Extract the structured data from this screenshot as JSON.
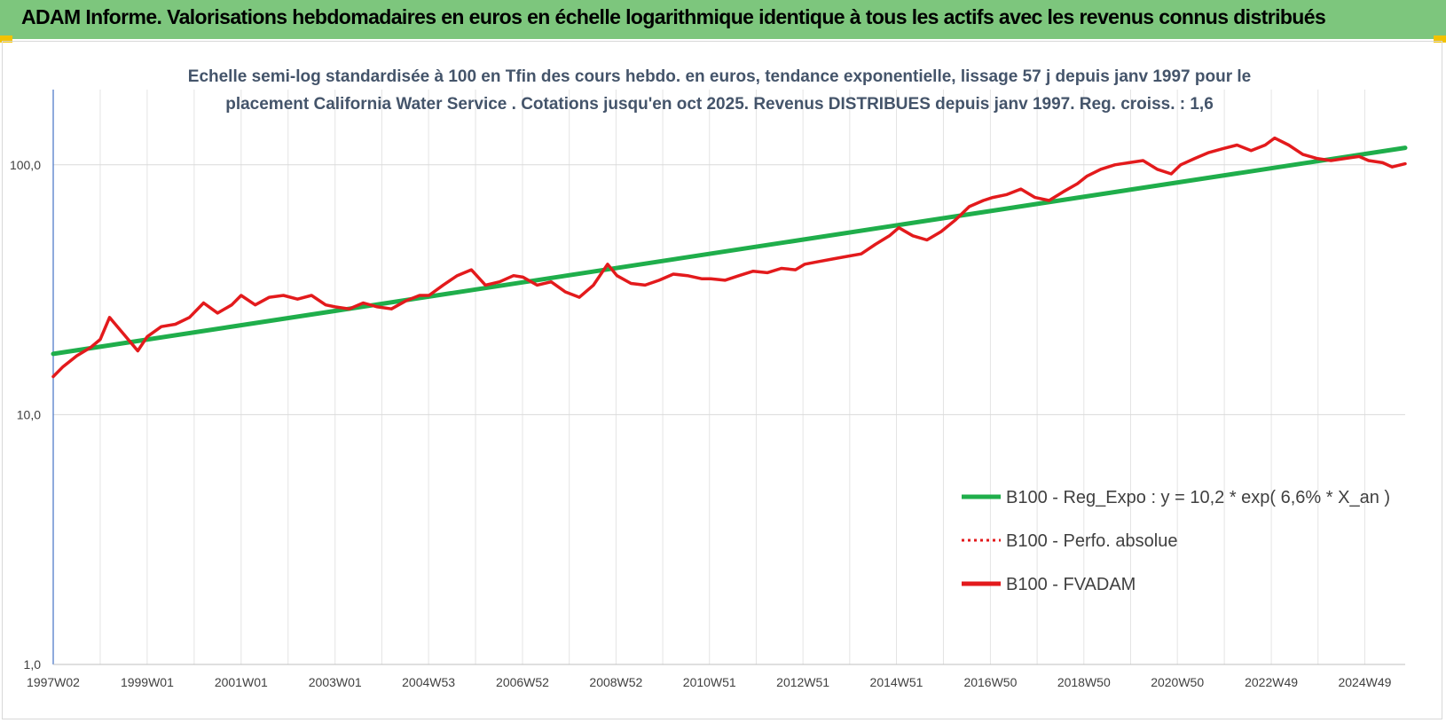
{
  "banner": {
    "title": "ADAM Informe. Valorisations hebdomadaires en euros en échelle logarithmique identique à tous les actifs avec les revenus connus distribués"
  },
  "chart_data": {
    "type": "line",
    "title_lines": [
      "Echelle semi-log standardisée à 100 en Tfin des cours hebdo. en euros, tendance exponentielle, lissage 57 j depuis janv 1997 pour le",
      "placement California Water Service . Cotations jusqu'en oct 2025. Revenus DISTRIBUES depuis janv 1997. Reg. croiss. : 1,6"
    ],
    "y_scale": "log",
    "ylim": [
      1,
      200
    ],
    "y_ticks": [
      {
        "value": 1,
        "label": "1,0"
      },
      {
        "value": 10,
        "label": "10,0"
      },
      {
        "value": 100,
        "label": "100,0"
      }
    ],
    "xlim": [
      1997.0,
      2025.78
    ],
    "x_ticks": [
      {
        "value": 1997.0,
        "label": "1997W02"
      },
      {
        "value": 1999.0,
        "label": "1999W01"
      },
      {
        "value": 2001.0,
        "label": "2001W01"
      },
      {
        "value": 2003.0,
        "label": "2003W01"
      },
      {
        "value": 2004.99,
        "label": "2004W53"
      },
      {
        "value": 2006.99,
        "label": "2006W52"
      },
      {
        "value": 2008.98,
        "label": "2008W52"
      },
      {
        "value": 2010.97,
        "label": "2010W51"
      },
      {
        "value": 2012.96,
        "label": "2012W51"
      },
      {
        "value": 2014.95,
        "label": "2014W51"
      },
      {
        "value": 2016.95,
        "label": "2016W50"
      },
      {
        "value": 2018.94,
        "label": "2018W50"
      },
      {
        "value": 2020.93,
        "label": "2020W50"
      },
      {
        "value": 2022.93,
        "label": "2022W49"
      },
      {
        "value": 2024.92,
        "label": "2024W49"
      }
    ],
    "grid": {
      "vertical": true,
      "horizontal": true
    },
    "legend_position": "bottom-right",
    "series": [
      {
        "name": "B100 - Reg_Expo : y = 10,2 * exp( 6,6% *  X_an )",
        "color": "#1fae4b",
        "style": "solid",
        "x": [
          1997.0,
          2025.78
        ],
        "y": [
          17.5,
          117
        ]
      },
      {
        "name": "B100 - Perfo. absolue",
        "color": "#e31a1c",
        "style": "dotted",
        "x": [],
        "y": []
      },
      {
        "name": "B100 - FVADAM",
        "color": "#e31a1c",
        "style": "solid",
        "x": [
          1997.0,
          1997.2,
          1997.5,
          1997.8,
          1998.0,
          1998.2,
          1998.5,
          1998.8,
          1999.0,
          1999.3,
          1999.6,
          1999.9,
          2000.2,
          2000.5,
          2000.8,
          2001.0,
          2001.3,
          2001.6,
          2001.9,
          2002.2,
          2002.5,
          2002.8,
          2003.0,
          2003.3,
          2003.6,
          2003.9,
          2004.2,
          2004.5,
          2004.8,
          2005.0,
          2005.3,
          2005.6,
          2005.9,
          2006.2,
          2006.5,
          2006.8,
          2007.0,
          2007.3,
          2007.6,
          2007.9,
          2008.2,
          2008.5,
          2008.8,
          2009.0,
          2009.3,
          2009.6,
          2009.9,
          2010.2,
          2010.5,
          2010.8,
          2011.0,
          2011.3,
          2011.6,
          2011.9,
          2012.2,
          2012.5,
          2012.8,
          2013.0,
          2013.3,
          2013.6,
          2013.9,
          2014.2,
          2014.5,
          2014.8,
          2015.0,
          2015.3,
          2015.6,
          2015.9,
          2016.2,
          2016.5,
          2016.8,
          2017.0,
          2017.3,
          2017.6,
          2017.9,
          2018.2,
          2018.5,
          2018.8,
          2019.0,
          2019.3,
          2019.6,
          2019.9,
          2020.2,
          2020.5,
          2020.8,
          2021.0,
          2021.3,
          2021.6,
          2021.9,
          2022.2,
          2022.5,
          2022.8,
          2023.0,
          2023.3,
          2023.6,
          2023.9,
          2024.2,
          2024.5,
          2024.8,
          2025.0,
          2025.3,
          2025.5,
          2025.78
        ],
        "y": [
          14.2,
          15.5,
          17.2,
          18.6,
          20.0,
          24.5,
          21.0,
          18.0,
          20.5,
          22.5,
          23.0,
          24.5,
          28.0,
          25.5,
          27.5,
          30.0,
          27.5,
          29.5,
          30.0,
          29.0,
          30.0,
          27.5,
          27.0,
          26.5,
          28.0,
          27.0,
          26.5,
          28.5,
          30.0,
          30.0,
          33.0,
          36.0,
          38.0,
          33.0,
          34.0,
          36.0,
          35.5,
          33.0,
          34.0,
          31.0,
          29.5,
          33.0,
          40.0,
          36.0,
          33.5,
          33.0,
          34.5,
          36.5,
          36.0,
          35.0,
          35.0,
          34.5,
          36.0,
          37.5,
          37.0,
          38.5,
          38.0,
          40.0,
          41.0,
          42.0,
          43.0,
          44.0,
          48.0,
          52.0,
          56.0,
          52.0,
          50.0,
          54.0,
          60.0,
          68.0,
          72.0,
          74.0,
          76.0,
          80.0,
          74.0,
          72.0,
          78.0,
          84.0,
          90.0,
          96.0,
          100.0,
          102.0,
          104.0,
          96.0,
          92.0,
          100.0,
          106.0,
          112.0,
          116.0,
          120.0,
          114.0,
          120.0,
          128.0,
          120.0,
          110.0,
          106.0,
          104.0,
          106.0,
          108.0,
          104.0,
          102.0,
          98.0,
          101.0
        ]
      }
    ]
  }
}
